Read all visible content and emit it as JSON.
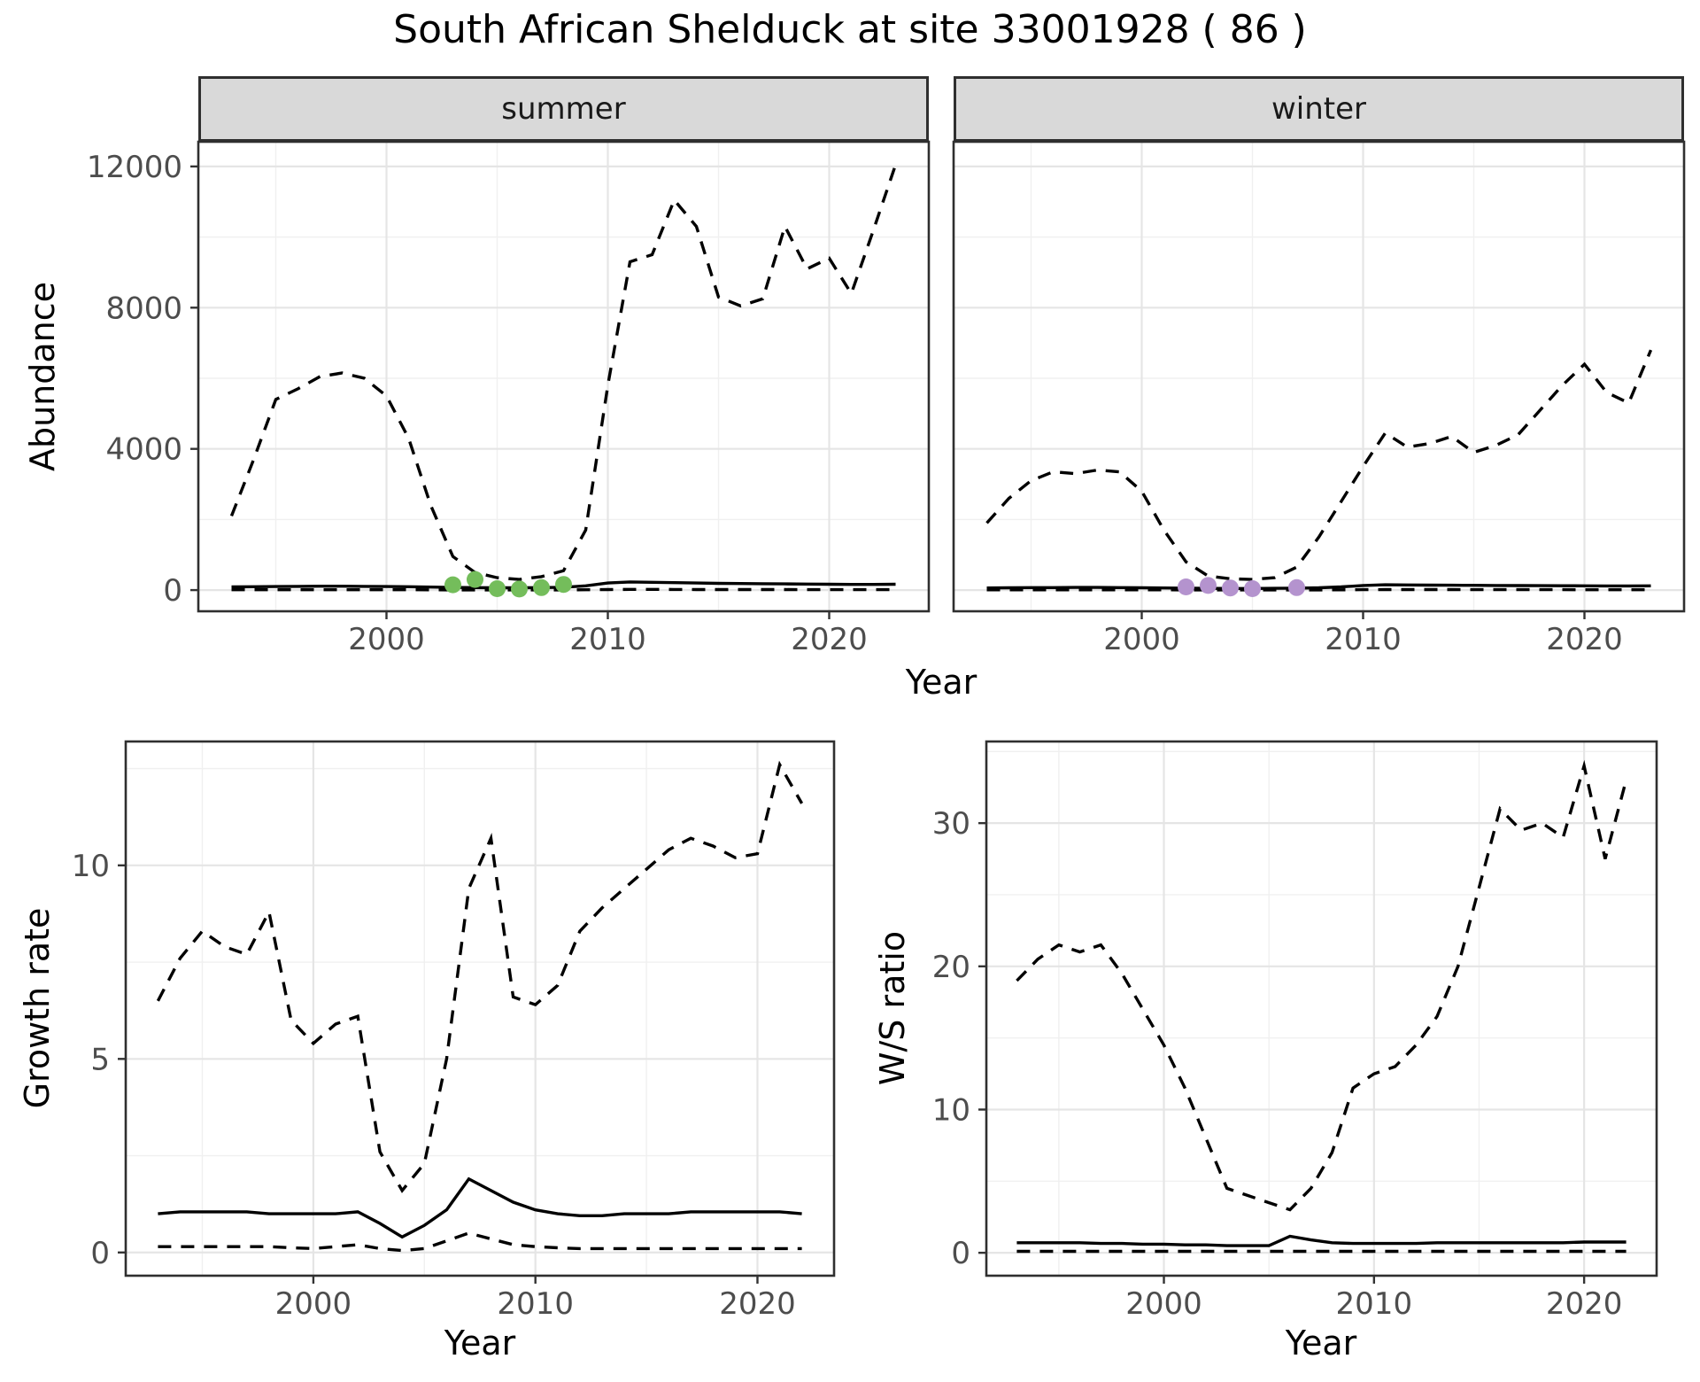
{
  "title": "South African Shelduck at site 33001928 ( 86 )",
  "palette": {
    "line": "#000000",
    "summer_points": "#74bd5b",
    "winter_points": "#b493ce",
    "strip_background": "#d9d9d9",
    "panel_border": "#2f2f2f",
    "grid_major": "#e5e5e5",
    "grid_minor": "#f0f0f0",
    "tick_text": "#4d4d4d"
  },
  "chart_data": [
    {
      "id": "abundance-summer",
      "type": "line",
      "facet_label": "summer",
      "xlabel": "Year",
      "ylabel": "Abundance",
      "legend": "none",
      "xlim": [
        1991.5,
        2024.5
      ],
      "ylim": [
        -600,
        12700
      ],
      "xticks": [
        2000,
        2010,
        2020
      ],
      "yticks": [
        0,
        4000,
        8000,
        12000
      ],
      "x": [
        1993,
        1994,
        1995,
        1996,
        1997,
        1998,
        1999,
        2000,
        2001,
        2002,
        2003,
        2004,
        2005,
        2006,
        2007,
        2008,
        2009,
        2010,
        2011,
        2012,
        2013,
        2014,
        2015,
        2016,
        2017,
        2018,
        2019,
        2020,
        2021,
        2022,
        2023
      ],
      "series": [
        {
          "name": "upper-ci",
          "linetype": "dashed",
          "values": [
            2100,
            3700,
            5400,
            5700,
            6050,
            6150,
            6000,
            5500,
            4300,
            2400,
            950,
            500,
            350,
            300,
            380,
            550,
            1700,
            5800,
            9300,
            9500,
            11050,
            10300,
            8300,
            8050,
            8250,
            10300,
            9100,
            9400,
            8400,
            10200,
            12050
          ]
        },
        {
          "name": "median",
          "linetype": "solid",
          "values": [
            90,
            95,
            100,
            105,
            110,
            110,
            105,
            100,
            95,
            85,
            75,
            70,
            65,
            65,
            70,
            80,
            120,
            200,
            230,
            220,
            210,
            200,
            190,
            185,
            180,
            175,
            170,
            165,
            160,
            160,
            165
          ]
        },
        {
          "name": "lower-ci",
          "linetype": "dashed",
          "values": [
            10,
            10,
            10,
            10,
            10,
            10,
            10,
            10,
            10,
            8,
            6,
            5,
            5,
            5,
            5,
            6,
            10,
            15,
            20,
            20,
            18,
            16,
            15,
            15,
            14,
            14,
            13,
            12,
            12,
            12,
            12
          ]
        }
      ],
      "highlight_points": {
        "name": "summer-flagged-years",
        "color": "#74bd5b",
        "x": [
          2003,
          2004,
          2005,
          2006,
          2007,
          2008
        ],
        "y": [
          150,
          300,
          40,
          30,
          70,
          160
        ]
      }
    },
    {
      "id": "abundance-winter",
      "type": "line",
      "facet_label": "winter",
      "xlabel": "Year",
      "ylabel": "Abundance",
      "legend": "none",
      "xlim": [
        1991.5,
        2024.5
      ],
      "ylim": [
        -600,
        12700
      ],
      "xticks": [
        2000,
        2010,
        2020
      ],
      "yticks": [
        0,
        4000,
        8000,
        12000
      ],
      "x": [
        1993,
        1994,
        1995,
        1996,
        1997,
        1998,
        1999,
        2000,
        2001,
        2002,
        2003,
        2004,
        2005,
        2006,
        2007,
        2008,
        2009,
        2010,
        2011,
        2012,
        2013,
        2014,
        2015,
        2016,
        2017,
        2018,
        2019,
        2020,
        2021,
        2022,
        2023
      ],
      "series": [
        {
          "name": "upper-ci",
          "linetype": "dashed",
          "values": [
            1900,
            2600,
            3100,
            3350,
            3300,
            3400,
            3350,
            2800,
            1700,
            800,
            400,
            320,
            300,
            350,
            650,
            1500,
            2500,
            3500,
            4450,
            4050,
            4150,
            4350,
            3900,
            4100,
            4400,
            5100,
            5800,
            6400,
            5600,
            5300,
            6800
          ]
        },
        {
          "name": "median",
          "linetype": "solid",
          "values": [
            60,
            65,
            70,
            70,
            75,
            75,
            70,
            65,
            60,
            55,
            50,
            45,
            45,
            50,
            55,
            65,
            90,
            130,
            150,
            145,
            140,
            138,
            135,
            130,
            128,
            125,
            122,
            120,
            118,
            118,
            120
          ]
        },
        {
          "name": "lower-ci",
          "linetype": "dashed",
          "values": [
            8,
            8,
            8,
            8,
            8,
            8,
            8,
            8,
            7,
            6,
            5,
            4,
            4,
            4,
            5,
            6,
            8,
            12,
            15,
            15,
            14,
            14,
            13,
            13,
            12,
            12,
            12,
            11,
            11,
            11,
            11
          ]
        }
      ],
      "highlight_points": {
        "name": "winter-flagged-years",
        "color": "#b493ce",
        "x": [
          2002,
          2003,
          2004,
          2005,
          2007
        ],
        "y": [
          90,
          130,
          60,
          40,
          70
        ]
      }
    },
    {
      "id": "growth-rate",
      "type": "line",
      "facet_label": "",
      "xlabel": "Year",
      "ylabel": "Growth rate",
      "legend": "none",
      "xlim": [
        1991.55,
        2023.45
      ],
      "ylim": [
        -0.6,
        13.2
      ],
      "xticks": [
        2000,
        2010,
        2020
      ],
      "yticks": [
        0,
        5,
        10
      ],
      "x": [
        1993,
        1994,
        1995,
        1996,
        1997,
        1998,
        1999,
        2000,
        2001,
        2002,
        2003,
        2004,
        2005,
        2006,
        2007,
        2008,
        2009,
        2010,
        2011,
        2012,
        2013,
        2014,
        2015,
        2016,
        2017,
        2018,
        2019,
        2020,
        2021,
        2022
      ],
      "series": [
        {
          "name": "upper-ci",
          "linetype": "dashed",
          "values": [
            6.5,
            7.6,
            8.3,
            7.9,
            7.7,
            8.8,
            6.0,
            5.4,
            5.9,
            6.1,
            2.6,
            1.6,
            2.3,
            5.0,
            9.4,
            10.7,
            6.6,
            6.4,
            6.9,
            8.3,
            8.9,
            9.4,
            9.9,
            10.4,
            10.7,
            10.5,
            10.2,
            10.3,
            12.6,
            11.6
          ]
        },
        {
          "name": "median",
          "linetype": "solid",
          "values": [
            1.0,
            1.05,
            1.05,
            1.05,
            1.05,
            1.0,
            1.0,
            1.0,
            1.0,
            1.05,
            0.75,
            0.4,
            0.7,
            1.1,
            1.9,
            1.6,
            1.3,
            1.1,
            1.0,
            0.95,
            0.95,
            1.0,
            1.0,
            1.0,
            1.05,
            1.05,
            1.05,
            1.05,
            1.05,
            1.0
          ]
        },
        {
          "name": "lower-ci",
          "linetype": "dashed",
          "values": [
            0.15,
            0.15,
            0.15,
            0.15,
            0.15,
            0.15,
            0.12,
            0.1,
            0.15,
            0.2,
            0.1,
            0.05,
            0.1,
            0.3,
            0.5,
            0.35,
            0.2,
            0.15,
            0.12,
            0.1,
            0.1,
            0.1,
            0.1,
            0.1,
            0.1,
            0.1,
            0.1,
            0.1,
            0.1,
            0.1
          ]
        }
      ]
    },
    {
      "id": "ws-ratio",
      "type": "line",
      "facet_label": "",
      "xlabel": "Year",
      "ylabel": "W/S ratio",
      "legend": "none",
      "xlim": [
        1991.55,
        2023.45
      ],
      "ylim": [
        -1.6,
        35.7
      ],
      "xticks": [
        2000,
        2010,
        2020
      ],
      "yticks": [
        0,
        10,
        20,
        30
      ],
      "x": [
        1993,
        1994,
        1995,
        1996,
        1997,
        1998,
        1999,
        2000,
        2001,
        2002,
        2003,
        2004,
        2005,
        2006,
        2007,
        2008,
        2009,
        2010,
        2011,
        2012,
        2013,
        2014,
        2015,
        2016,
        2017,
        2018,
        2019,
        2020,
        2021,
        2022
      ],
      "series": [
        {
          "name": "upper-ci",
          "linetype": "dashed",
          "values": [
            19.0,
            20.5,
            21.5,
            21.0,
            21.5,
            19.5,
            17.0,
            14.5,
            11.5,
            8.0,
            4.5,
            4.0,
            3.5,
            3.0,
            4.5,
            7.0,
            11.5,
            12.5,
            13.0,
            14.5,
            16.5,
            20.0,
            25.5,
            31.0,
            29.5,
            30.0,
            29.0,
            34.0,
            27.5,
            33.0
          ]
        },
        {
          "name": "median",
          "linetype": "solid",
          "values": [
            0.7,
            0.7,
            0.7,
            0.7,
            0.65,
            0.65,
            0.6,
            0.6,
            0.55,
            0.55,
            0.5,
            0.5,
            0.5,
            1.15,
            0.9,
            0.7,
            0.65,
            0.65,
            0.65,
            0.65,
            0.7,
            0.7,
            0.7,
            0.7,
            0.7,
            0.7,
            0.7,
            0.75,
            0.75,
            0.75
          ]
        },
        {
          "name": "lower-ci",
          "linetype": "dashed",
          "values": [
            0.1,
            0.1,
            0.1,
            0.1,
            0.1,
            0.1,
            0.1,
            0.1,
            0.1,
            0.1,
            0.1,
            0.1,
            0.1,
            0.1,
            0.1,
            0.1,
            0.1,
            0.1,
            0.1,
            0.1,
            0.1,
            0.1,
            0.1,
            0.1,
            0.1,
            0.1,
            0.1,
            0.1,
            0.1,
            0.1
          ]
        }
      ]
    }
  ]
}
